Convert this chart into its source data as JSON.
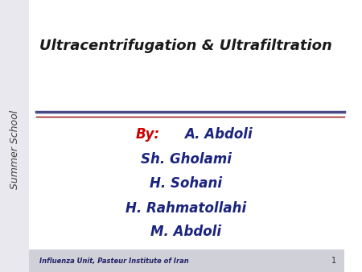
{
  "title": "Ultracentrifugation & Ultrafiltration",
  "title_color": "#1a1a1a",
  "title_fontsize": 13,
  "by_label": "By:",
  "by_color": "#cc0000",
  "names": [
    "A. Abdoli",
    "Sh. Gholami",
    "H. Sohani",
    "H. Rahmatollahi",
    "M. Abdoli"
  ],
  "names_color": "#1a237e",
  "names_fontsize": 12,
  "sidebar_text": "Summer School",
  "sidebar_bg": "#e8e8ee",
  "sidebar_text_color": "#444444",
  "footer_text": "Influenza Unit, Pasteur Institute of Iran",
  "footer_bg": "#d0d0d8",
  "footer_fontsize": 6,
  "slide_number": "1",
  "line1_color": "#4a4a8a",
  "line2_color": "#8b0000",
  "bg_color": "#ffffff"
}
